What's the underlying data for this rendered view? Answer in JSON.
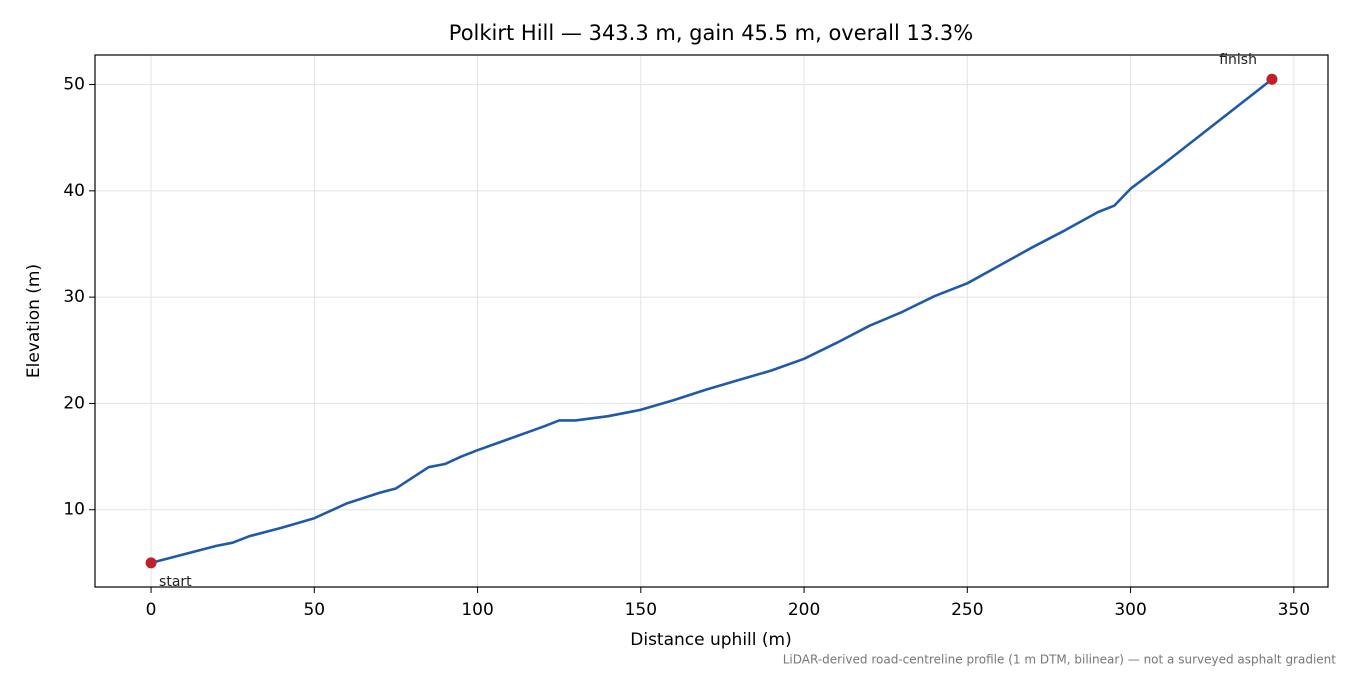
{
  "chart_data": {
    "type": "line",
    "title": "Polkirt Hill — 343.3 m, gain 45.5 m, overall 13.3%",
    "x_label": "Distance uphill (m)",
    "y_label": "Elevation (m)",
    "footnote": "LiDAR-derived road-centreline profile (1 m DTM, bilinear) — not a surveyed asphalt gradient",
    "x": [
      0,
      10,
      20,
      25,
      30,
      40,
      50,
      60,
      70,
      75,
      80,
      85,
      90,
      95,
      100,
      110,
      120,
      125,
      130,
      140,
      150,
      160,
      170,
      180,
      190,
      200,
      210,
      220,
      230,
      240,
      250,
      260,
      270,
      280,
      290,
      295,
      300,
      310,
      320,
      330,
      340,
      343.3
    ],
    "series": [
      {
        "name": "Elevation",
        "color": "#1f5aa8",
        "values": [
          5.0,
          5.8,
          6.6,
          6.9,
          7.5,
          8.3,
          9.2,
          10.6,
          11.6,
          12.0,
          13.0,
          14.0,
          14.3,
          15.0,
          15.6,
          16.7,
          17.8,
          18.4,
          18.4,
          18.8,
          19.4,
          20.3,
          21.3,
          22.2,
          23.1,
          24.2,
          25.7,
          27.3,
          28.6,
          30.1,
          31.3,
          33.0,
          34.7,
          36.3,
          38.0,
          38.6,
          40.2,
          42.5,
          44.9,
          47.3,
          49.7,
          50.5
        ]
      }
    ],
    "endpoint_labels": [
      "start",
      "finish"
    ],
    "endpoint_color": "#c0202a",
    "xlim": [
      -17.17,
      360.47
    ],
    "ylim": [
      2.73,
      52.78
    ],
    "xticks": [
      0,
      50,
      100,
      150,
      200,
      250,
      300,
      350
    ],
    "yticks": [
      10,
      20,
      30,
      40,
      50
    ],
    "grid": true
  }
}
